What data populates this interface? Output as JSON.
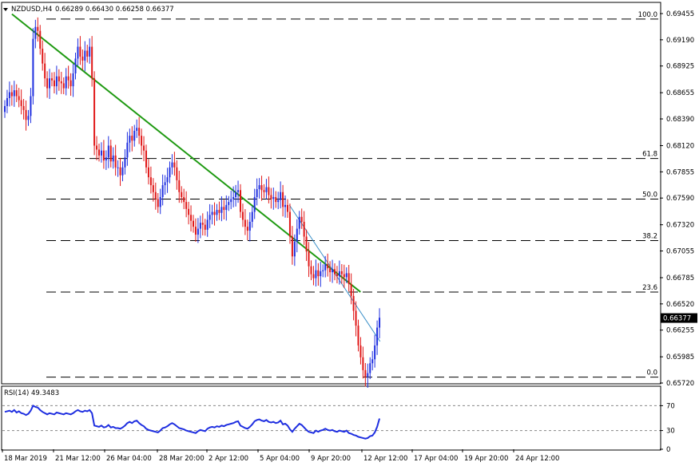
{
  "header": {
    "symbol": "NZDUSD,H4",
    "ohlc": "0.66289 0.66430 0.66258 0.66377"
  },
  "rsi_header": "RSI(14) 49.3483",
  "colors": {
    "bull_candle": "#1f2fe0",
    "bear_candle": "#e01818",
    "trendline_major": "#1f9a12",
    "trendline_minor": "#3a8fc8",
    "rsi_line": "#1f2fe0",
    "fib_line": "#000000"
  },
  "chart_data": [
    {
      "type": "candlestick",
      "symbol": "NZDUSD",
      "timeframe": "H4",
      "ylim": [
        0.6572,
        0.6956
      ],
      "y_ticks": [
        "0.69455",
        "0.69190",
        "0.68925",
        "0.68655",
        "0.68390",
        "0.68120",
        "0.67855",
        "0.67590",
        "0.67320",
        "0.67055",
        "0.66785",
        "0.66520",
        "0.66255",
        "0.65985",
        "0.65720"
      ],
      "x_ticks": [
        "18 Mar 2019",
        "21 Mar 12:00",
        "26 Mar 04:00",
        "28 Mar 20:00",
        "2 Apr 12:00",
        "5 Apr 04:00",
        "9 Apr 20:00",
        "12 Apr 12:00",
        "17 Apr 04:00",
        "19 Apr 20:00",
        "24 Apr 12:00"
      ],
      "current_price": "0.66377",
      "fibonacci_levels": [
        {
          "label": "100.0",
          "price": 0.694
        },
        {
          "label": "61.8",
          "price": 0.6799
        },
        {
          "label": "50.0",
          "price": 0.6758
        },
        {
          "label": "38.2",
          "price": 0.6716
        },
        {
          "label": "23.6",
          "price": 0.6664
        },
        {
          "label": "0.0",
          "price": 0.6578
        }
      ],
      "trendlines": [
        {
          "name": "major",
          "from": [
            4,
            0.6945
          ],
          "to": [
            200,
            0.6664
          ]
        },
        {
          "name": "minor",
          "from": [
            160,
            0.6752
          ],
          "to": [
            211,
            0.6614
          ]
        }
      ],
      "closes": [
        0.6852,
        0.686,
        0.6866,
        0.6862,
        0.6868,
        0.6862,
        0.6858,
        0.6852,
        0.6848,
        0.6838,
        0.6842,
        0.6862,
        0.692,
        0.6932,
        0.6928,
        0.691,
        0.6895,
        0.688,
        0.687,
        0.688,
        0.6878,
        0.6872,
        0.6882,
        0.6877,
        0.6875,
        0.687,
        0.6882,
        0.6878,
        0.6872,
        0.6885,
        0.69,
        0.6912,
        0.6902,
        0.6898,
        0.6908,
        0.6902,
        0.6912,
        0.688,
        0.6812,
        0.6808,
        0.6802,
        0.6807,
        0.6797,
        0.68,
        0.6812,
        0.6796,
        0.6802,
        0.679,
        0.679,
        0.6782,
        0.679,
        0.68,
        0.6815,
        0.6822,
        0.6817,
        0.6827,
        0.683,
        0.6822,
        0.6812,
        0.6807,
        0.679,
        0.678,
        0.6772,
        0.6765,
        0.6758,
        0.675,
        0.676,
        0.6772,
        0.6775,
        0.678,
        0.679,
        0.6795,
        0.679,
        0.6777,
        0.6765,
        0.676,
        0.6755,
        0.6748,
        0.6742,
        0.6736,
        0.673,
        0.6722,
        0.6728,
        0.6734,
        0.6732,
        0.6727,
        0.6737,
        0.6742,
        0.6745,
        0.6742,
        0.6747,
        0.6744,
        0.675,
        0.6747,
        0.6752,
        0.6755,
        0.6758,
        0.676,
        0.6765,
        0.6767,
        0.6745,
        0.6737,
        0.673,
        0.6726,
        0.6735,
        0.6745,
        0.676,
        0.6768,
        0.6772,
        0.6767,
        0.6765,
        0.677,
        0.6762,
        0.6758,
        0.676,
        0.6755,
        0.6757,
        0.6765,
        0.675,
        0.6752,
        0.6745,
        0.672,
        0.67,
        0.6715,
        0.6728,
        0.674,
        0.6735,
        0.672,
        0.6705,
        0.669,
        0.6682,
        0.6678,
        0.6686,
        0.668,
        0.6685,
        0.6686,
        0.6692,
        0.6688,
        0.6684,
        0.6687,
        0.6682,
        0.668,
        0.6685,
        0.6682,
        0.6679,
        0.6683,
        0.6672,
        0.666,
        0.6645,
        0.663,
        0.661,
        0.6598,
        0.6585,
        0.6578,
        0.6582,
        0.6592,
        0.6596,
        0.661,
        0.6628,
        0.6638
      ]
    },
    {
      "type": "line",
      "title": "RSI(14) 49.3483",
      "ylim": [
        0,
        100
      ],
      "y_ticks": [
        70,
        30,
        0
      ],
      "levels": [
        70,
        30
      ],
      "values": [
        60,
        61,
        62,
        60,
        63,
        59,
        61,
        58,
        57,
        55,
        57,
        62,
        70,
        68,
        67,
        63,
        60,
        58,
        56,
        58,
        57,
        56,
        59,
        58,
        57,
        56,
        58,
        57,
        56,
        58,
        61,
        63,
        61,
        60,
        62,
        61,
        63,
        58,
        38,
        37,
        36,
        38,
        35,
        36,
        39,
        35,
        36,
        34,
        34,
        33,
        35,
        38,
        42,
        44,
        42,
        45,
        46,
        42,
        39,
        37,
        33,
        31,
        30,
        29,
        28,
        27,
        30,
        34,
        35,
        37,
        40,
        42,
        40,
        37,
        34,
        33,
        32,
        30,
        29,
        28,
        27,
        26,
        29,
        31,
        30,
        29,
        33,
        35,
        36,
        35,
        37,
        36,
        38,
        37,
        39,
        40,
        41,
        42,
        44,
        45,
        38,
        36,
        34,
        33,
        36,
        40,
        45,
        47,
        48,
        46,
        45,
        47,
        44,
        43,
        44,
        42,
        43,
        46,
        40,
        41,
        38,
        32,
        28,
        33,
        37,
        41,
        39,
        35,
        31,
        28,
        27,
        26,
        30,
        28,
        30,
        31,
        33,
        31,
        30,
        31,
        29,
        28,
        30,
        29,
        28,
        30,
        26,
        25,
        23,
        22,
        20,
        19,
        18,
        17,
        18,
        21,
        22,
        27,
        36,
        49.3483
      ]
    }
  ]
}
